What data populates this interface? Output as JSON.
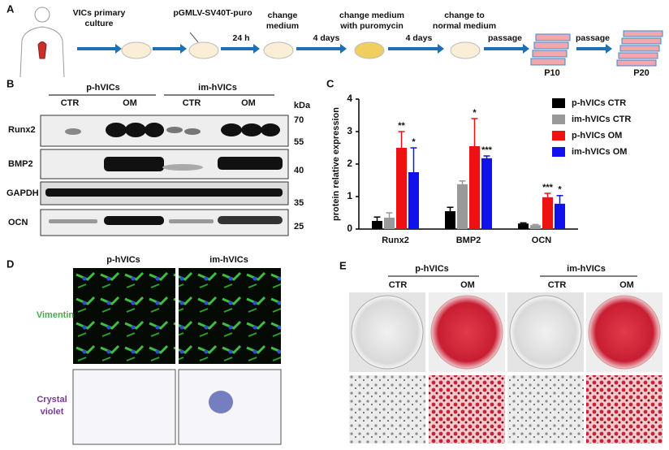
{
  "panel_a": {
    "label": "A",
    "steps": [
      {
        "lines": [
          "VICs primary",
          "culture"
        ]
      },
      {
        "lines": [
          "pGMLV-SV40T-puro"
        ]
      },
      {
        "lines": [
          "24 h"
        ]
      },
      {
        "lines": [
          "change",
          "medium"
        ]
      },
      {
        "lines": [
          "4 days"
        ]
      },
      {
        "lines": [
          "change medium",
          "with puromycin"
        ]
      },
      {
        "lines": [
          "4 days"
        ]
      },
      {
        "lines": [
          "change to",
          "normal medium"
        ]
      },
      {
        "lines": [
          "passage"
        ]
      },
      {
        "lines": [
          "passage"
        ]
      }
    ],
    "passages": [
      "P10",
      "P20"
    ]
  },
  "panel_b": {
    "label": "B",
    "groups": [
      "p-hVICs",
      "im-hVICs"
    ],
    "conditions": [
      "CTR",
      "OM",
      "CTR",
      "OM"
    ],
    "unit": "kDa",
    "rows": [
      "Runx2",
      "BMP2",
      "GAPDH",
      "OCN"
    ],
    "markers": [
      70,
      55,
      40,
      35,
      25
    ]
  },
  "chart_data": {
    "type": "bar",
    "panel_label": "C",
    "y_label": "protein relative expression",
    "categories": [
      "Runx2",
      "BMP2",
      "OCN"
    ],
    "series": [
      {
        "name": "p-hVICs CTR",
        "color": "#000000",
        "values": [
          0.25,
          0.55,
          0.17
        ],
        "errors": [
          0.12,
          0.12,
          0.02
        ]
      },
      {
        "name": "im-hVICs CTR",
        "color": "#999999",
        "values": [
          0.35,
          1.38,
          0.12
        ],
        "errors": [
          0.15,
          0.1,
          0.02
        ]
      },
      {
        "name": "p-hVICs OM",
        "color": "#ee1111",
        "values": [
          2.5,
          2.55,
          0.98
        ],
        "errors": [
          0.5,
          0.85,
          0.12
        ],
        "significance": [
          "**",
          "*",
          "***"
        ]
      },
      {
        "name": "im-hVICs OM",
        "color": "#1111ee",
        "values": [
          1.75,
          2.18,
          0.78
        ],
        "errors": [
          0.75,
          0.07,
          0.25
        ],
        "significance": [
          "*",
          "***",
          "*"
        ]
      }
    ],
    "ylim": [
      0,
      4
    ],
    "yticks": [
      0,
      1,
      2,
      3,
      4
    ],
    "grid": false
  },
  "panel_d": {
    "label": "D",
    "columns": [
      "p-hVICs",
      "im-hVICs"
    ],
    "rows": [
      {
        "lines": [
          "Vimentin"
        ]
      },
      {
        "lines": [
          "Crystal",
          "violet"
        ]
      }
    ]
  },
  "panel_e": {
    "label": "E",
    "groups": [
      "p-hVICs",
      "im-hVICs"
    ],
    "conditions": [
      "CTR",
      "OM",
      "CTR",
      "OM"
    ]
  }
}
